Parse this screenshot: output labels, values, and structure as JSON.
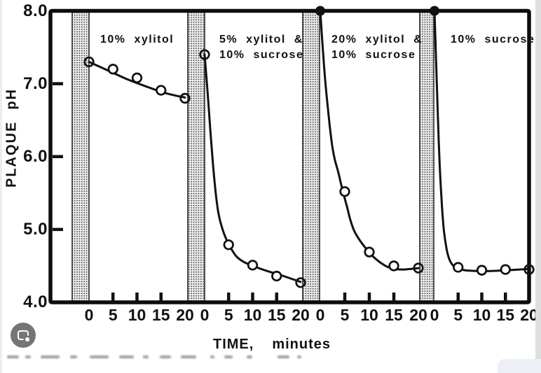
{
  "figure": {
    "ylabel_word1": "PLAQUE",
    "ylabel_word2": "pH",
    "xlabel_word1": "TIME,",
    "xlabel_word2": "minutes"
  },
  "chart_data": {
    "type": "line",
    "title": "",
    "xlabel": "TIME, minutes",
    "ylabel": "PLAQUE pH",
    "ylim": [
      4.0,
      8.0
    ],
    "xlim_per_panel": [
      0,
      20
    ],
    "yticks": [
      {
        "value": 8.0,
        "label": "8.0"
      },
      {
        "value": 7.0,
        "label": "7.0"
      },
      {
        "value": 6.0,
        "label": "6.0"
      },
      {
        "value": 5.0,
        "label": "5.0"
      },
      {
        "value": 4.0,
        "label": "4.0"
      }
    ],
    "xticks": [
      {
        "value": 0,
        "label": "0"
      },
      {
        "value": 5,
        "label": "5"
      },
      {
        "value": 10,
        "label": "10"
      },
      {
        "value": 15,
        "label": "15"
      },
      {
        "value": 20,
        "label": "20"
      }
    ],
    "grid": false,
    "marker": "open-circle",
    "line_color": "#111111",
    "band_style": "stippled-vertical-bar-before-t0",
    "panels": [
      {
        "label": "10% xylitol",
        "label_lines": [
          "10% xylitol"
        ],
        "start_marker": "open",
        "points": [
          [
            0,
            7.3
          ],
          [
            5,
            7.2
          ],
          [
            10,
            7.08
          ],
          [
            15,
            6.91
          ],
          [
            20,
            6.8
          ]
        ],
        "curve": [
          [
            0,
            7.3
          ],
          [
            4,
            7.18
          ],
          [
            8,
            7.06
          ],
          [
            12,
            6.96
          ],
          [
            16,
            6.87
          ],
          [
            20,
            6.81
          ]
        ]
      },
      {
        "label": "5% xylitol & 10% sucrose",
        "label_lines": [
          "5% xylitol &",
          "10% sucrose"
        ],
        "start_marker": "open",
        "points": [
          [
            0,
            7.4
          ],
          [
            5,
            4.79
          ],
          [
            10,
            4.51
          ],
          [
            15,
            4.36
          ],
          [
            20,
            4.27
          ]
        ],
        "curve": [
          [
            0,
            7.4
          ],
          [
            0.6,
            6.9
          ],
          [
            1.2,
            6.35
          ],
          [
            1.8,
            5.85
          ],
          [
            2.4,
            5.45
          ],
          [
            3,
            5.18
          ],
          [
            4,
            4.95
          ],
          [
            5,
            4.8
          ],
          [
            6.5,
            4.64
          ],
          [
            8,
            4.56
          ],
          [
            10,
            4.5
          ],
          [
            13,
            4.43
          ],
          [
            16,
            4.37
          ],
          [
            20,
            4.28
          ]
        ]
      },
      {
        "label": "20% xylitol & 10% sucrose",
        "label_lines": [
          "20% xylitol &",
          "10% sucrose"
        ],
        "start_marker": "filled",
        "points": [
          [
            0,
            8.0
          ],
          [
            5,
            5.52
          ],
          [
            10,
            4.69
          ],
          [
            15,
            4.5
          ],
          [
            20,
            4.47
          ]
        ],
        "curve": [
          [
            0,
            8.0
          ],
          [
            0.5,
            7.5
          ],
          [
            1,
            7.05
          ],
          [
            1.5,
            6.7
          ],
          [
            2,
            6.38
          ],
          [
            2.5,
            6.12
          ],
          [
            3,
            5.95
          ],
          [
            3.7,
            5.78
          ],
          [
            4.5,
            5.55
          ],
          [
            5.5,
            5.3
          ],
          [
            6.1,
            5.14
          ],
          [
            7,
            4.97
          ],
          [
            8.6,
            4.8
          ],
          [
            10.9,
            4.62
          ],
          [
            13.3,
            4.5
          ],
          [
            15,
            4.46
          ],
          [
            17,
            4.45
          ],
          [
            20,
            4.47
          ]
        ]
      },
      {
        "label": "10% sucrose",
        "label_lines": [
          "10% sucrose"
        ],
        "start_marker": "filled",
        "points": [
          [
            0,
            8.0
          ],
          [
            5,
            4.48
          ],
          [
            10,
            4.44
          ],
          [
            15,
            4.45
          ],
          [
            20,
            4.45
          ]
        ],
        "curve": [
          [
            0,
            8.0
          ],
          [
            0.3,
            7.4
          ],
          [
            0.6,
            6.8
          ],
          [
            0.9,
            6.2
          ],
          [
            1.2,
            5.75
          ],
          [
            1.6,
            5.3
          ],
          [
            2,
            4.98
          ],
          [
            2.6,
            4.72
          ],
          [
            3.2,
            4.58
          ],
          [
            4,
            4.5
          ],
          [
            5,
            4.46
          ],
          [
            6.5,
            4.44
          ],
          [
            9,
            4.43
          ],
          [
            12,
            4.43
          ],
          [
            15,
            4.44
          ],
          [
            18,
            4.45
          ],
          [
            20,
            4.46
          ]
        ]
      }
    ]
  }
}
